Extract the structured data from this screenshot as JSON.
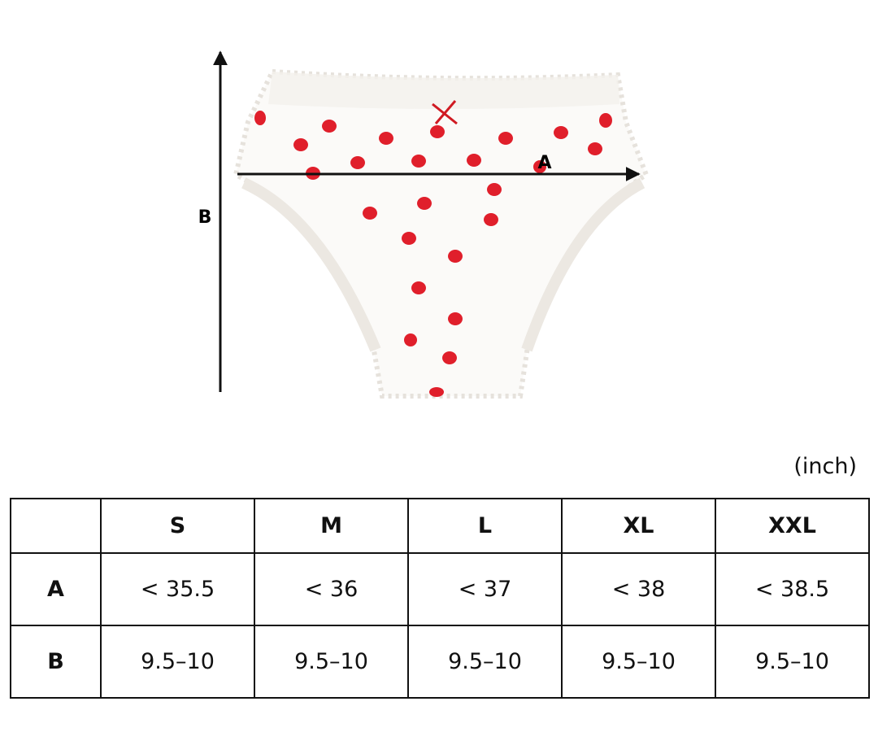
{
  "diagram": {
    "label_a": "A",
    "label_b": "B"
  },
  "unit": "(inch)",
  "table": {
    "columns": [
      "S",
      "M",
      "L",
      "XL",
      "XXL"
    ],
    "rows": [
      {
        "label": "A",
        "cells": [
          "< 35.5",
          "< 36",
          "< 37",
          "< 38",
          "< 38.5"
        ]
      },
      {
        "label": "B",
        "cells": [
          "9.5–10",
          "9.5–10",
          "9.5–10",
          "9.5–10",
          "9.5–10"
        ]
      }
    ]
  }
}
